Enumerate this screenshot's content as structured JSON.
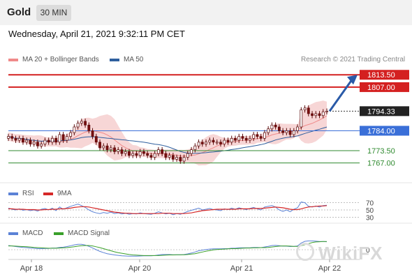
{
  "header": {
    "asset": "Gold",
    "timeframe": "30 MIN"
  },
  "date": "Wednesday, April 21, 2021 9:32:11 PM CET",
  "credit": "Research © 2021 Trading Central",
  "watermark": "WikiFX",
  "legends": {
    "price": [
      {
        "label": "MA 20 + Bollinger Bands",
        "color": "#f08a8a"
      },
      {
        "label": "MA 50",
        "color": "#2e5f9e"
      }
    ],
    "rsi": [
      {
        "label": "RSI",
        "color": "#5b82d6"
      },
      {
        "label": "9MA",
        "color": "#d62828"
      }
    ],
    "macd": [
      {
        "label": "MACD",
        "color": "#5b82d6"
      },
      {
        "label": "MACD Signal",
        "color": "#3aa02a"
      }
    ]
  },
  "colors": {
    "resistance": "#d42020",
    "support": "#3a6fd8",
    "pivot": "#222222",
    "lower": "#2f8a2f",
    "arrow": "#2a5aa8",
    "up_candle": "#ffffff",
    "down_candle": "#7a0f0f"
  },
  "chart_data": [
    {
      "type": "candlestick",
      "title": "Gold 30 MIN",
      "x_ticks": [
        "Apr 18",
        "Apr 20",
        "Apr 21",
        "Apr 22"
      ],
      "ylim": [
        1761,
        1818
      ],
      "levels": [
        {
          "value": 1813.5,
          "label": "1813.50",
          "kind": "resistance"
        },
        {
          "value": 1807.0,
          "label": "1807.00",
          "kind": "resistance"
        },
        {
          "value": 1794.33,
          "label": "1794.33",
          "kind": "last_price"
        },
        {
          "value": 1784.0,
          "label": "1784.00",
          "kind": "support_pivot"
        },
        {
          "value": 1773.5,
          "label": "1773.50",
          "kind": "support"
        },
        {
          "value": 1767.0,
          "label": "1767.00",
          "kind": "support"
        }
      ],
      "close_series": [
        1781,
        1780,
        1779,
        1780,
        1778,
        1779,
        1777,
        1778,
        1776,
        1777,
        1779,
        1778,
        1780,
        1778,
        1782,
        1779,
        1781,
        1783,
        1786,
        1788,
        1789,
        1787,
        1784,
        1781,
        1778,
        1775,
        1776,
        1774,
        1775,
        1773,
        1774,
        1772,
        1773,
        1771,
        1772,
        1771,
        1773,
        1772,
        1771,
        1770,
        1772,
        1774,
        1772,
        1770,
        1771,
        1769,
        1770,
        1768,
        1770,
        1772,
        1774,
        1776,
        1778,
        1777,
        1778,
        1779,
        1778,
        1778,
        1777,
        1779,
        1778,
        1780,
        1779,
        1781,
        1780,
        1779,
        1780,
        1782,
        1781,
        1780,
        1783,
        1785,
        1787,
        1786,
        1784,
        1783,
        1784,
        1782,
        1784,
        1786,
        1795,
        1796,
        1793,
        1792,
        1793,
        1792,
        1794,
        1794.33
      ],
      "projection": {
        "from": 1794.33,
        "to": 1813.5
      }
    },
    {
      "type": "line",
      "title": "RSI",
      "levels": [
        70,
        50,
        30
      ],
      "series": [
        {
          "name": "RSI"
        },
        {
          "name": "9MA"
        }
      ],
      "rsi_values": [
        55,
        52,
        50,
        53,
        49,
        51,
        48,
        50,
        47,
        52,
        54,
        50,
        55,
        48,
        58,
        52,
        56,
        60,
        63,
        66,
        62,
        57,
        50,
        45,
        42,
        40,
        43,
        41,
        44,
        40,
        42,
        39,
        41,
        38,
        40,
        39,
        42,
        40,
        39,
        38,
        41,
        45,
        42,
        39,
        41,
        37,
        40,
        38,
        42,
        46,
        49,
        52,
        55,
        50,
        52,
        54,
        51,
        50,
        48,
        53,
        51,
        55,
        52,
        56,
        53,
        51,
        54,
        57,
        53,
        50,
        58,
        60,
        62,
        58,
        50,
        46,
        50,
        45,
        52,
        56,
        72,
        70,
        60,
        58,
        61,
        58,
        62,
        63
      ],
      "ma_values": [
        53,
        53,
        52,
        52,
        52,
        51,
        51,
        51,
        50,
        50,
        51,
        51,
        52,
        52,
        53,
        53,
        54,
        55,
        57,
        58,
        59,
        59,
        58,
        56,
        54,
        52,
        50,
        48,
        46,
        44,
        43,
        42,
        41,
        41,
        40,
        40,
        40,
        40,
        40,
        40,
        40,
        40,
        41,
        41,
        41,
        40,
        40,
        40,
        40,
        41,
        42,
        44,
        46,
        48,
        49,
        50,
        51,
        52,
        52,
        52,
        52,
        52,
        52,
        53,
        53,
        53,
        53,
        54,
        54,
        54,
        55,
        56,
        57,
        58,
        57,
        56,
        54,
        52,
        51,
        51,
        53,
        56,
        58,
        59,
        60,
        61,
        61,
        62
      ]
    },
    {
      "type": "line",
      "title": "MACD",
      "levels": [
        0
      ],
      "series": [
        {
          "name": "MACD"
        },
        {
          "name": "MACD Signal"
        }
      ],
      "macd_values": [
        2.0,
        1.8,
        1.5,
        1.3,
        1.1,
        1.0,
        0.8,
        0.7,
        0.5,
        0.5,
        0.6,
        0.6,
        0.8,
        0.8,
        1.1,
        1.2,
        1.5,
        1.9,
        2.3,
        2.6,
        2.6,
        2.2,
        1.6,
        0.8,
        0.0,
        -0.8,
        -1.4,
        -1.9,
        -2.2,
        -2.5,
        -2.7,
        -2.9,
        -3.0,
        -3.1,
        -3.1,
        -3.1,
        -3.0,
        -2.9,
        -2.9,
        -2.9,
        -2.8,
        -2.5,
        -2.3,
        -2.3,
        -2.3,
        -2.4,
        -2.4,
        -2.4,
        -2.3,
        -2.0,
        -1.6,
        -1.1,
        -0.5,
        -0.2,
        0.1,
        0.3,
        0.4,
        0.4,
        0.4,
        0.5,
        0.5,
        0.7,
        0.7,
        0.9,
        0.9,
        0.9,
        0.9,
        1.1,
        1.1,
        1.0,
        1.3,
        1.6,
        2.0,
        2.1,
        1.9,
        1.7,
        1.7,
        1.5,
        1.6,
        1.8,
        3.2,
        4.0,
        4.2,
        4.2,
        4.1,
        3.9,
        3.9,
        3.8
      ],
      "signal_values": [
        1.8,
        1.8,
        1.7,
        1.6,
        1.5,
        1.4,
        1.3,
        1.1,
        1.0,
        0.9,
        0.8,
        0.7,
        0.7,
        0.7,
        0.8,
        0.9,
        1.0,
        1.2,
        1.4,
        1.7,
        1.9,
        2.0,
        2.0,
        1.8,
        1.4,
        1.0,
        0.5,
        0.0,
        -0.5,
        -1.0,
        -1.4,
        -1.7,
        -2.0,
        -2.3,
        -2.5,
        -2.6,
        -2.7,
        -2.8,
        -2.8,
        -2.8,
        -2.8,
        -2.8,
        -2.7,
        -2.6,
        -2.5,
        -2.5,
        -2.4,
        -2.4,
        -2.4,
        -2.3,
        -2.1,
        -1.9,
        -1.5,
        -1.1,
        -0.7,
        -0.4,
        -0.1,
        0.1,
        0.2,
        0.3,
        0.4,
        0.5,
        0.5,
        0.6,
        0.7,
        0.8,
        0.8,
        0.9,
        0.9,
        1.0,
        1.0,
        1.1,
        1.3,
        1.5,
        1.7,
        1.8,
        1.8,
        1.7,
        1.6,
        1.6,
        1.9,
        2.4,
        2.9,
        3.4,
        3.7,
        3.8,
        3.9,
        3.9
      ]
    }
  ]
}
